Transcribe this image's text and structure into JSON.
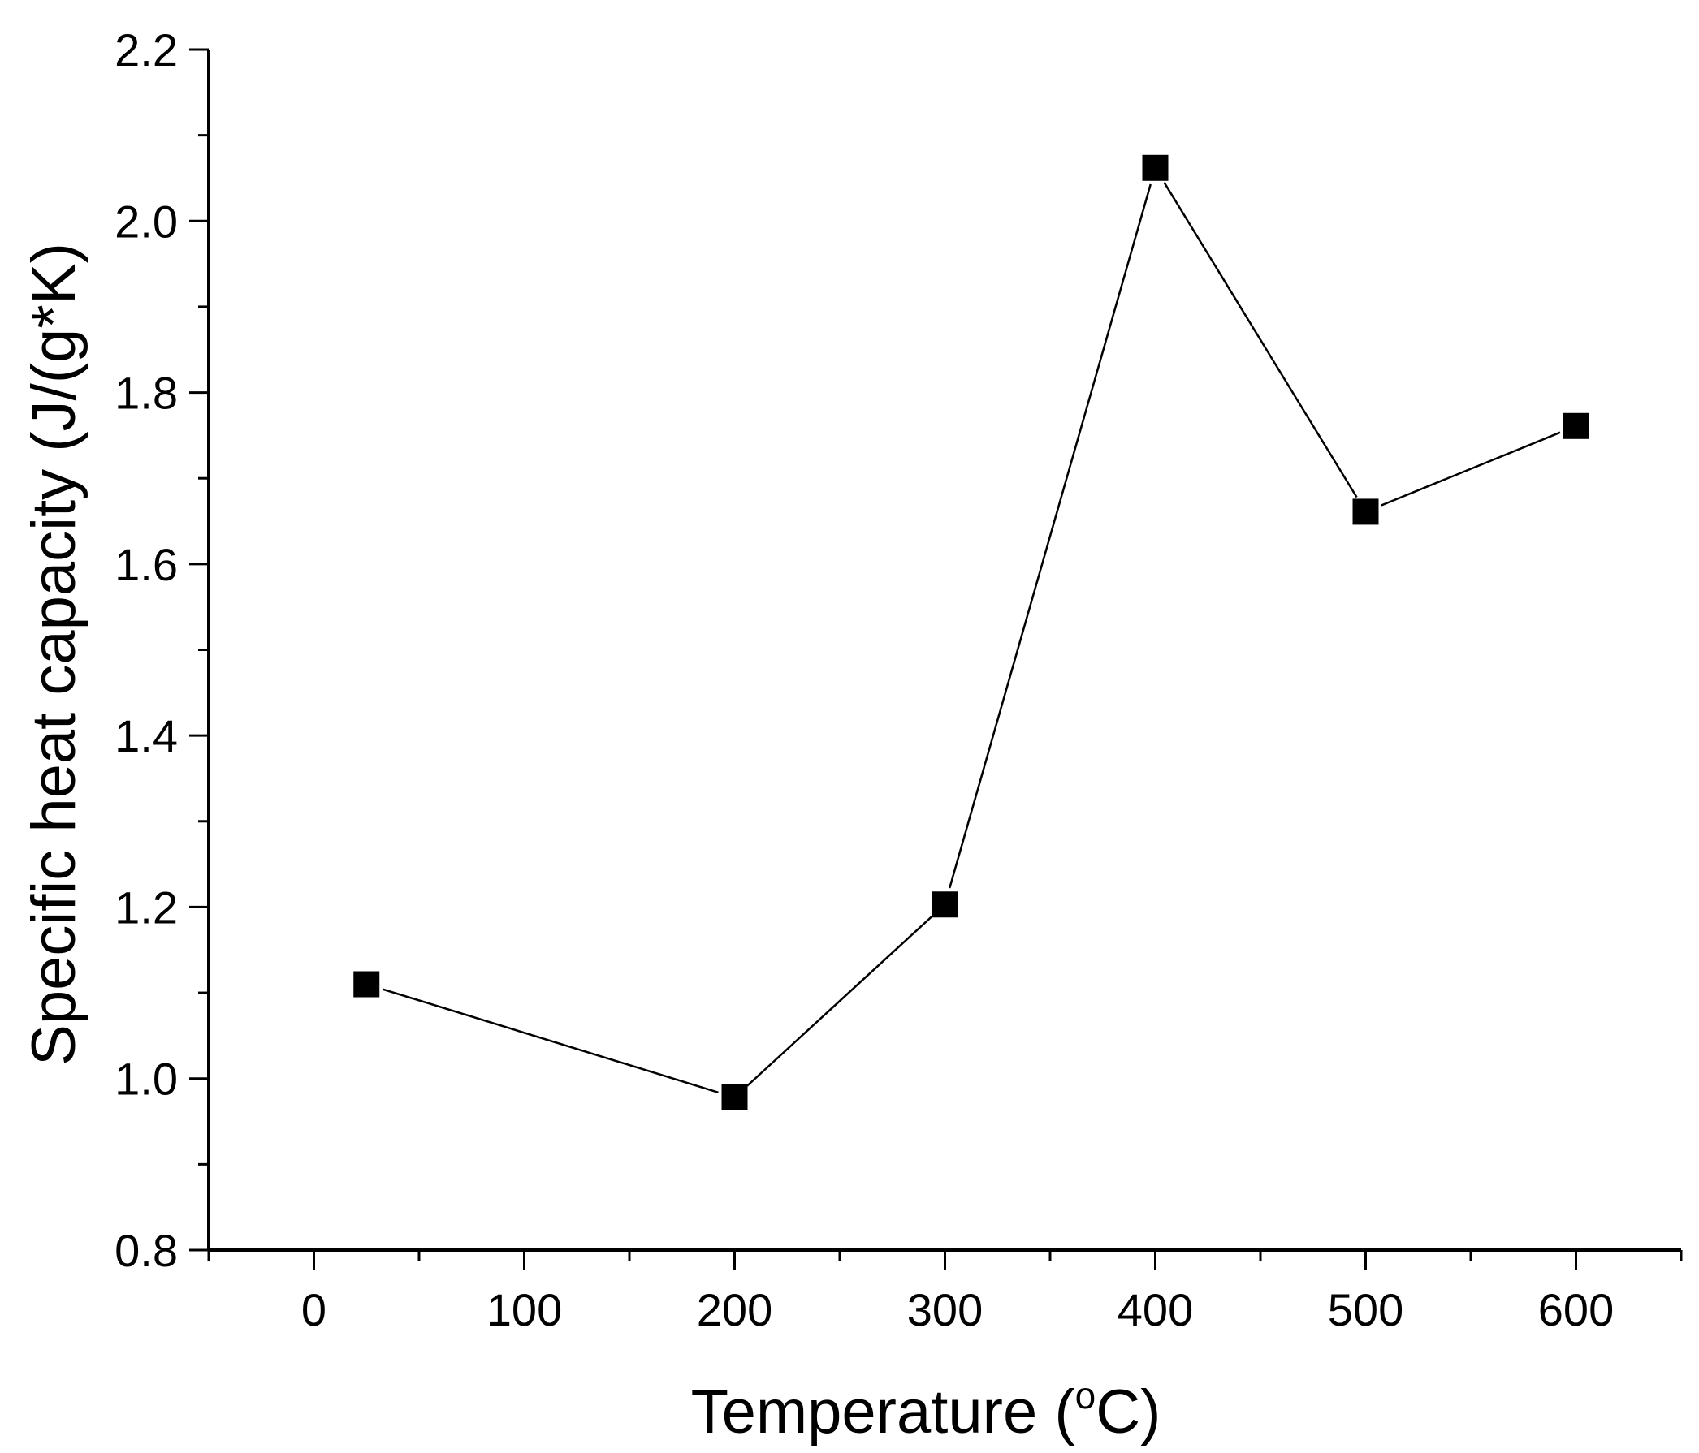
{
  "chart_data": {
    "type": "line",
    "title": "",
    "xlabel": {
      "prefix": "Temperature (",
      "superscript": "o",
      "suffix": "C)"
    },
    "ylabel": "Specific heat capacity (J/(g*K)",
    "xlim": [
      -50,
      650
    ],
    "ylim": [
      0.8,
      2.2
    ],
    "x_ticks": [
      "0",
      "100",
      "200",
      "300",
      "400",
      "500",
      "600"
    ],
    "y_ticks": [
      "0.8",
      "1.0",
      "1.2",
      "1.4",
      "1.6",
      "1.8",
      "2.0",
      "2.2"
    ],
    "series": [
      {
        "marker": "square",
        "color": "#000000",
        "x": [
          25,
          200,
          300,
          400,
          500,
          600
        ],
        "y": [
          1.11,
          0.978,
          1.203,
          2.062,
          1.661,
          1.761
        ]
      }
    ],
    "grid": false,
    "legend": "none"
  }
}
